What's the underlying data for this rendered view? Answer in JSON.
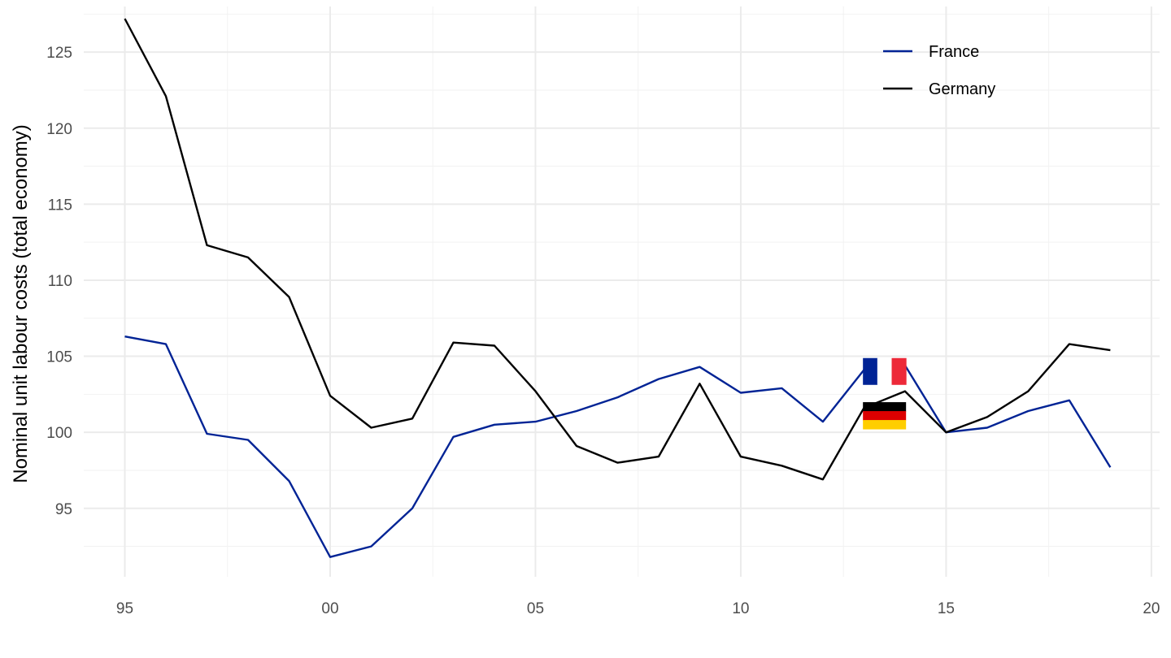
{
  "chart_data": {
    "type": "line",
    "ylabel": "Nominal unit labour costs (total economy)",
    "xlabel": "",
    "x": [
      1995,
      1996,
      1997,
      1998,
      1999,
      2000,
      2001,
      2002,
      2003,
      2004,
      2005,
      2006,
      2007,
      2008,
      2009,
      2010,
      2011,
      2012,
      2013,
      2014,
      2015,
      2016,
      2017,
      2018,
      2019
    ],
    "xlim": [
      1994,
      2020.2
    ],
    "ylim": [
      90.5,
      128
    ],
    "x_ticks": [
      1995,
      2000,
      2005,
      2010,
      2015,
      2020
    ],
    "x_tick_labels": [
      "95",
      "00",
      "05",
      "10",
      "15",
      "20"
    ],
    "y_ticks": [
      95,
      100,
      105,
      110,
      115,
      120,
      125
    ],
    "y_tick_labels": [
      "95",
      "100",
      "105",
      "110",
      "115",
      "120",
      "125"
    ],
    "grid": true,
    "legend_position": "top-right",
    "series": [
      {
        "name": "France",
        "color": "#002395",
        "values": [
          106.3,
          105.8,
          99.9,
          99.5,
          96.8,
          91.8,
          92.5,
          95.0,
          99.7,
          100.5,
          100.7,
          101.4,
          102.3,
          103.5,
          104.3,
          102.6,
          102.9,
          100.7,
          104.1,
          104.4,
          100.0,
          100.3,
          101.4,
          102.1,
          97.7
        ]
      },
      {
        "name": "Germany",
        "color": "#000000",
        "values": [
          127.2,
          122.1,
          112.3,
          111.5,
          108.9,
          102.4,
          100.3,
          100.9,
          105.9,
          105.7,
          102.7,
          99.1,
          98.0,
          98.4,
          103.2,
          98.4,
          97.8,
          96.9,
          101.6,
          102.7,
          100.0,
          101.0,
          102.7,
          105.8,
          105.4
        ]
      }
    ],
    "annotations": [
      {
        "type": "flag",
        "flag": "france-flag",
        "x": 2013.5,
        "y": 104.0,
        "colors": [
          "#002395",
          "#ffffff",
          "#ed2939"
        ]
      },
      {
        "type": "flag",
        "flag": "germany-flag",
        "x": 2013.5,
        "y": 101.1,
        "colors": [
          "#000000",
          "#dd0000",
          "#ffce00"
        ]
      }
    ]
  }
}
